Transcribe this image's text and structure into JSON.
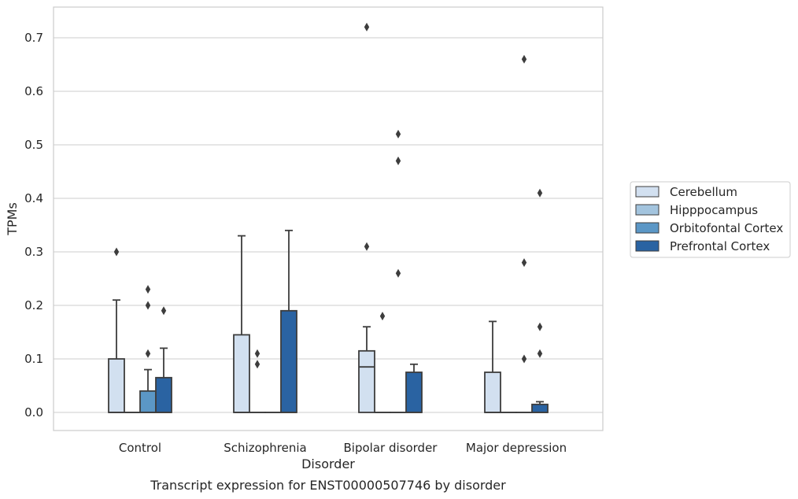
{
  "caption": "Transcript expression for ENST00000507746 by disorder",
  "chart_data": {
    "type": "box",
    "xlabel": "Disorder",
    "ylabel": "TPMs",
    "categories": [
      "Control",
      "Schizophrenia",
      "Bipolar disorder",
      "Major depression"
    ],
    "ylim": [
      -0.035,
      0.76
    ],
    "yticks": [
      "0.0",
      "0.1",
      "0.2",
      "0.3",
      "0.4",
      "0.5",
      "0.6",
      "0.7"
    ],
    "grid": true,
    "legend_position": "right",
    "series": [
      {
        "name": "Cerebellum",
        "color": "#d2e0f0",
        "boxes": [
          {
            "q1": 0.0,
            "median": 0.0,
            "q3": 0.1,
            "whislo": 0.0,
            "whishi": 0.21,
            "fliers": [
              0.3
            ]
          },
          {
            "q1": 0.0,
            "median": 0.0,
            "q3": 0.145,
            "whislo": 0.0,
            "whishi": 0.33,
            "fliers": []
          },
          {
            "q1": 0.0,
            "median": 0.085,
            "q3": 0.115,
            "whislo": 0.0,
            "whishi": 0.16,
            "fliers": [
              0.31,
              0.72
            ]
          },
          {
            "q1": 0.0,
            "median": 0.0,
            "q3": 0.075,
            "whislo": 0.0,
            "whishi": 0.17,
            "fliers": []
          }
        ]
      },
      {
        "name": "Hipppocampus",
        "color": "#a3c4de",
        "boxes": [
          {
            "q1": 0.0,
            "median": 0.0,
            "q3": 0.0,
            "whislo": 0.0,
            "whishi": 0.0,
            "fliers": []
          },
          {
            "q1": 0.0,
            "median": 0.0,
            "q3": 0.0,
            "whislo": 0.0,
            "whishi": 0.0,
            "fliers": [
              0.09,
              0.11
            ]
          },
          {
            "q1": 0.0,
            "median": 0.0,
            "q3": 0.0,
            "whislo": 0.0,
            "whishi": 0.0,
            "fliers": [
              0.18
            ]
          },
          {
            "q1": 0.0,
            "median": 0.0,
            "q3": 0.0,
            "whislo": 0.0,
            "whishi": 0.0,
            "fliers": []
          }
        ]
      },
      {
        "name": "Orbitofontal Cortex",
        "color": "#5b97c6",
        "boxes": [
          {
            "q1": 0.0,
            "median": 0.0,
            "q3": 0.04,
            "whislo": 0.0,
            "whishi": 0.08,
            "fliers": [
              0.11,
              0.2,
              0.23
            ]
          },
          {
            "q1": 0.0,
            "median": 0.0,
            "q3": 0.0,
            "whislo": 0.0,
            "whishi": 0.0,
            "fliers": []
          },
          {
            "q1": 0.0,
            "median": 0.0,
            "q3": 0.0,
            "whislo": 0.0,
            "whishi": 0.0,
            "fliers": [
              0.26,
              0.47,
              0.52
            ]
          },
          {
            "q1": 0.0,
            "median": 0.0,
            "q3": 0.0,
            "whislo": 0.0,
            "whishi": 0.0,
            "fliers": [
              0.1,
              0.28,
              0.66
            ]
          }
        ]
      },
      {
        "name": "Prefrontal Cortex",
        "color": "#2a63a2",
        "boxes": [
          {
            "q1": 0.0,
            "median": 0.0,
            "q3": 0.065,
            "whislo": 0.0,
            "whishi": 0.12,
            "fliers": [
              0.19
            ]
          },
          {
            "q1": 0.0,
            "median": 0.0,
            "q3": 0.19,
            "whislo": 0.0,
            "whishi": 0.34,
            "fliers": []
          },
          {
            "q1": 0.0,
            "median": 0.0,
            "q3": 0.075,
            "whislo": 0.0,
            "whishi": 0.09,
            "fliers": []
          },
          {
            "q1": 0.0,
            "median": 0.0,
            "q3": 0.015,
            "whislo": 0.0,
            "whishi": 0.02,
            "fliers": [
              0.11,
              0.16,
              0.41
            ]
          }
        ]
      }
    ]
  }
}
